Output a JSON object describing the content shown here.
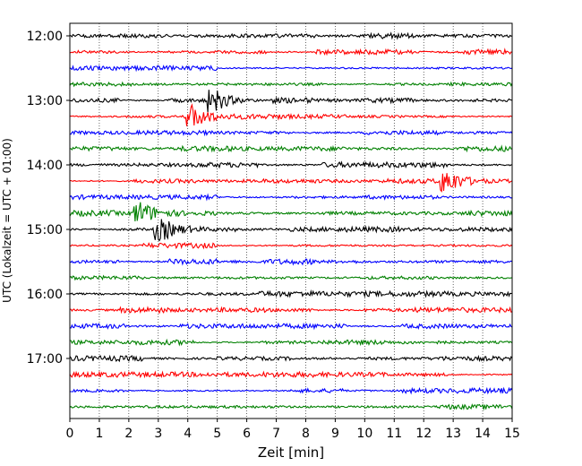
{
  "chart_data": {
    "type": "line",
    "title": "",
    "xlabel": "Zeit  [min]",
    "ylabel": "UTC (Lokalzeit = UTC + 01:00)",
    "xlim": [
      0,
      15
    ],
    "x_ticks": [
      "0",
      "1",
      "2",
      "3",
      "4",
      "5",
      "6",
      "7",
      "8",
      "9",
      "10",
      "11",
      "12",
      "13",
      "14",
      "15"
    ],
    "y_ticks": [
      "12:00",
      "13:00",
      "14:00",
      "15:00",
      "16:00",
      "17:00"
    ],
    "grid": "vertical dotted lines at each minute",
    "trace_minutes": 15,
    "trace_colors": [
      "#000000",
      "#ff0000",
      "#0000ff",
      "#008000"
    ],
    "series": [
      {
        "start": "12:00",
        "color": "#000000",
        "burst_minutes": []
      },
      {
        "start": "12:15",
        "color": "#ff0000",
        "burst_minutes": []
      },
      {
        "start": "12:30",
        "color": "#0000ff",
        "burst_minutes": []
      },
      {
        "start": "12:45",
        "color": "#008000",
        "burst_minutes": []
      },
      {
        "start": "13:00",
        "color": "#000000",
        "burst_minutes": [
          4.8
        ]
      },
      {
        "start": "13:15",
        "color": "#ff0000",
        "burst_minutes": [
          4.1
        ]
      },
      {
        "start": "13:30",
        "color": "#0000ff",
        "burst_minutes": []
      },
      {
        "start": "13:45",
        "color": "#008000",
        "burst_minutes": []
      },
      {
        "start": "14:00",
        "color": "#000000",
        "burst_minutes": []
      },
      {
        "start": "14:15",
        "color": "#ff0000",
        "burst_minutes": [
          12.7
        ]
      },
      {
        "start": "14:30",
        "color": "#0000ff",
        "burst_minutes": []
      },
      {
        "start": "14:45",
        "color": "#008000",
        "burst_minutes": [
          2.3
        ]
      },
      {
        "start": "15:00",
        "color": "#000000",
        "burst_minutes": [
          3.0
        ]
      },
      {
        "start": "15:15",
        "color": "#ff0000",
        "burst_minutes": []
      },
      {
        "start": "15:30",
        "color": "#0000ff",
        "burst_minutes": []
      },
      {
        "start": "15:45",
        "color": "#008000",
        "burst_minutes": []
      },
      {
        "start": "16:00",
        "color": "#000000",
        "burst_minutes": []
      },
      {
        "start": "16:15",
        "color": "#ff0000",
        "burst_minutes": []
      },
      {
        "start": "16:30",
        "color": "#0000ff",
        "burst_minutes": []
      },
      {
        "start": "16:45",
        "color": "#008000",
        "burst_minutes": []
      },
      {
        "start": "17:00",
        "color": "#000000",
        "burst_minutes": []
      },
      {
        "start": "17:15",
        "color": "#ff0000",
        "burst_minutes": []
      },
      {
        "start": "17:30",
        "color": "#0000ff",
        "burst_minutes": []
      },
      {
        "start": "17:45",
        "color": "#008000",
        "burst_minutes": []
      }
    ]
  }
}
